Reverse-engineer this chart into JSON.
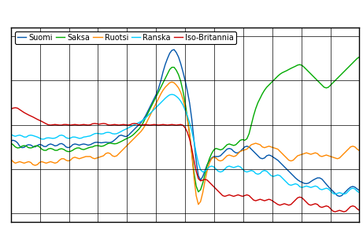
{
  "legend_labels": [
    "Suomi",
    "Saksa",
    "Ruotsi",
    "Ranska",
    "Iso-Britannia"
  ],
  "line_colors": [
    "#0055AA",
    "#00AA00",
    "#FF8800",
    "#00CCFF",
    "#CC0000"
  ],
  "background_color": "#FFFFFF",
  "grid_color": "#000000",
  "xlim": [
    0,
    156
  ],
  "ylim": [
    -22,
    22
  ],
  "x_gridlines": [
    0,
    13,
    26,
    39,
    52,
    65,
    78,
    91,
    104,
    117,
    130,
    143,
    156
  ],
  "y_gridlines": [
    -20,
    -10,
    0,
    10,
    20
  ],
  "suomi": [
    -3.5,
    -3.8,
    -3.2,
    -4.0,
    -5.0,
    -5.5,
    -5.0,
    -4.8,
    -4.2,
    -4.5,
    -5.0,
    -5.2,
    -4.8,
    -4.0,
    -4.5,
    -5.2,
    -5.0,
    -4.5,
    -4.0,
    -4.5,
    -5.0,
    -4.8,
    -4.2,
    -4.0,
    -4.5,
    -5.0,
    -5.5,
    -5.0,
    -4.5,
    -4.0,
    -4.5,
    -4.8,
    -4.5,
    -4.0,
    -4.5,
    -4.8,
    -4.5,
    -4.2,
    -4.0,
    -3.8,
    -4.0,
    -4.2,
    -4.0,
    -3.8,
    -4.0,
    -4.2,
    -3.8,
    -3.5,
    -3.0,
    -2.5,
    -2.0,
    -2.5,
    -3.0,
    -2.5,
    -2.0,
    -1.5,
    -1.0,
    -0.5,
    0.0,
    0.5,
    1.0,
    2.0,
    3.0,
    4.0,
    5.0,
    6.0,
    7.0,
    8.0,
    10.0,
    12.0,
    14.0,
    15.0,
    16.0,
    17.5,
    17.0,
    16.5,
    15.5,
    14.0,
    12.0,
    10.0,
    8.0,
    5.0,
    2.0,
    -3.0,
    -9.0,
    -12.5,
    -13.0,
    -12.0,
    -10.0,
    -9.0,
    -8.0,
    -7.5,
    -7.0,
    -7.0,
    -7.5,
    -7.0,
    -6.5,
    -6.0,
    -5.5,
    -5.0,
    -5.5,
    -6.0,
    -6.5,
    -6.5,
    -6.0,
    -5.5,
    -5.0,
    -4.5,
    -5.0,
    -5.5,
    -6.0,
    -6.5,
    -7.0,
    -7.5,
    -8.0,
    -7.5,
    -7.0,
    -6.5,
    -7.0,
    -7.5,
    -7.5,
    -8.0,
    -8.5,
    -9.0,
    -9.5,
    -10.0,
    -10.5,
    -11.0,
    -11.5,
    -12.0,
    -12.5,
    -12.8,
    -13.0,
    -13.2,
    -13.5,
    -13.2,
    -12.8,
    -12.5,
    -12.2,
    -12.0,
    -11.8,
    -12.2,
    -12.8,
    -13.5,
    -14.0,
    -14.5,
    -15.0,
    -15.5,
    -16.0,
    -16.5,
    -16.0,
    -15.5,
    -15.0,
    -14.5,
    -14.0,
    -13.8,
    -14.0,
    -14.5,
    -15.0
  ],
  "saksa": [
    -4.0,
    -4.5,
    -5.0,
    -5.5,
    -5.2,
    -4.8,
    -4.5,
    -4.8,
    -5.2,
    -5.5,
    -5.0,
    -4.8,
    -4.5,
    -5.0,
    -5.5,
    -6.0,
    -5.8,
    -5.5,
    -5.0,
    -5.5,
    -6.0,
    -5.8,
    -5.5,
    -5.2,
    -5.5,
    -6.0,
    -6.2,
    -6.0,
    -5.8,
    -5.5,
    -5.0,
    -5.2,
    -5.5,
    -5.8,
    -5.5,
    -5.0,
    -5.2,
    -5.0,
    -4.8,
    -4.5,
    -4.8,
    -5.0,
    -4.8,
    -4.5,
    -4.2,
    -4.0,
    -4.2,
    -4.5,
    -4.2,
    -4.0,
    -3.8,
    -3.5,
    -3.2,
    -3.0,
    -2.8,
    -2.5,
    -2.0,
    -1.5,
    -1.0,
    -0.5,
    0.5,
    1.5,
    2.5,
    3.5,
    4.5,
    5.5,
    6.5,
    7.5,
    8.5,
    9.5,
    10.5,
    11.5,
    12.5,
    13.5,
    13.0,
    12.5,
    11.5,
    10.0,
    8.0,
    5.0,
    2.0,
    -2.0,
    -6.0,
    -11.0,
    -15.0,
    -15.5,
    -15.0,
    -13.5,
    -11.0,
    -9.0,
    -7.5,
    -6.5,
    -5.5,
    -5.0,
    -5.5,
    -6.0,
    -5.5,
    -5.0,
    -4.5,
    -4.0,
    -4.5,
    -5.0,
    -4.5,
    -4.0,
    -3.5,
    -3.0,
    -3.5,
    -4.0,
    -2.0,
    0.0,
    2.0,
    4.0,
    5.0,
    6.0,
    7.0,
    8.0,
    8.5,
    9.0,
    9.5,
    10.0,
    10.5,
    11.0,
    11.5,
    11.8,
    12.0,
    12.2,
    12.5,
    12.8,
    13.0,
    13.2,
    13.5,
    13.8,
    13.5,
    13.0,
    12.5,
    12.0,
    11.5,
    11.0,
    10.5,
    10.0,
    9.5,
    9.0,
    8.5,
    8.0,
    8.5,
    9.0,
    9.5,
    10.0,
    10.5,
    11.0,
    11.5,
    12.0,
    12.5,
    13.0,
    13.5,
    14.0,
    14.5,
    15.0,
    15.5
  ],
  "ruotsi": [
    -7.5,
    -8.5,
    -9.0,
    -8.5,
    -8.0,
    -8.5,
    -9.0,
    -8.5,
    -8.0,
    -8.5,
    -9.0,
    -9.5,
    -9.0,
    -8.5,
    -8.0,
    -8.5,
    -9.0,
    -8.5,
    -8.0,
    -8.5,
    -9.0,
    -8.5,
    -8.0,
    -7.5,
    -7.5,
    -8.0,
    -8.5,
    -8.0,
    -7.5,
    -7.0,
    -7.5,
    -8.0,
    -7.5,
    -7.0,
    -7.5,
    -7.0,
    -7.0,
    -7.5,
    -8.0,
    -7.5,
    -7.0,
    -7.5,
    -7.0,
    -6.5,
    -6.0,
    -6.5,
    -7.0,
    -7.5,
    -7.0,
    -6.5,
    -6.0,
    -5.5,
    -5.0,
    -4.5,
    -4.0,
    -3.5,
    -3.0,
    -2.5,
    -2.0,
    -1.5,
    -1.0,
    0.0,
    1.0,
    2.0,
    3.0,
    4.0,
    5.0,
    6.0,
    7.0,
    8.0,
    8.5,
    9.0,
    9.5,
    10.0,
    9.5,
    9.0,
    8.5,
    7.5,
    6.0,
    4.0,
    1.5,
    -1.5,
    -6.0,
    -12.0,
    -17.5,
    -18.5,
    -18.0,
    -15.5,
    -12.5,
    -10.0,
    -8.5,
    -7.5,
    -7.0,
    -7.5,
    -8.0,
    -8.5,
    -8.0,
    -7.5,
    -7.0,
    -6.5,
    -7.0,
    -7.5,
    -7.0,
    -6.5,
    -6.0,
    -5.5,
    -6.0,
    -5.5,
    -5.0,
    -4.5,
    -4.0,
    -4.5,
    -4.0,
    -4.5,
    -5.0,
    -5.5,
    -5.0,
    -4.5,
    -5.0,
    -5.5,
    -5.0,
    -5.5,
    -6.0,
    -6.5,
    -7.0,
    -7.5,
    -8.0,
    -8.5,
    -8.0,
    -7.5,
    -7.0,
    -6.5,
    -7.0,
    -6.5,
    -6.0,
    -6.5,
    -7.0,
    -6.5,
    -6.0,
    -6.5,
    -7.0,
    -7.5,
    -7.0,
    -6.5,
    -7.0,
    -7.5,
    -7.0,
    -7.5,
    -8.0,
    -7.5,
    -7.0,
    -6.5,
    -6.0,
    -5.5,
    -5.0,
    -4.5,
    -5.0,
    -5.5,
    -6.0
  ],
  "ranska": [
    -2.0,
    -2.5,
    -2.8,
    -2.5,
    -2.0,
    -2.5,
    -3.0,
    -2.8,
    -2.5,
    -2.0,
    -2.5,
    -2.8,
    -2.5,
    -3.0,
    -3.5,
    -3.2,
    -3.0,
    -2.8,
    -3.0,
    -3.2,
    -3.0,
    -2.8,
    -2.5,
    -2.0,
    -2.5,
    -3.0,
    -3.2,
    -3.0,
    -2.8,
    -2.5,
    -3.0,
    -3.2,
    -3.0,
    -2.8,
    -2.5,
    -2.8,
    -2.5,
    -2.2,
    -2.0,
    -1.8,
    -2.0,
    -2.2,
    -2.0,
    -1.8,
    -1.5,
    -1.8,
    -2.0,
    -2.2,
    -2.0,
    -1.8,
    -1.5,
    -1.2,
    -1.0,
    -0.8,
    -0.5,
    -0.2,
    0.0,
    0.2,
    0.5,
    0.8,
    1.0,
    1.5,
    2.0,
    2.5,
    3.0,
    3.5,
    4.0,
    4.5,
    5.0,
    5.5,
    6.0,
    6.5,
    6.8,
    7.0,
    6.8,
    6.5,
    6.0,
    5.5,
    4.5,
    3.5,
    2.0,
    0.5,
    -1.0,
    -3.5,
    -6.5,
    -9.0,
    -10.5,
    -11.0,
    -10.5,
    -10.0,
    -9.5,
    -9.0,
    -9.5,
    -10.0,
    -10.5,
    -11.0,
    -10.5,
    -10.0,
    -9.5,
    -9.0,
    -9.5,
    -10.0,
    -9.5,
    -9.0,
    -9.5,
    -10.0,
    -10.5,
    -11.0,
    -10.5,
    -10.0,
    -10.5,
    -11.0,
    -11.5,
    -11.0,
    -10.5,
    -10.0,
    -10.5,
    -11.0,
    -11.5,
    -12.0,
    -11.5,
    -11.0,
    -11.5,
    -12.0,
    -12.5,
    -13.0,
    -13.5,
    -14.0,
    -13.5,
    -13.0,
    -13.5,
    -14.0,
    -14.5,
    -14.0,
    -13.5,
    -14.0,
    -14.5,
    -14.0,
    -13.5,
    -14.0,
    -14.5,
    -15.0,
    -14.5,
    -14.0,
    -14.5,
    -15.0,
    -15.5,
    -16.0,
    -15.5,
    -15.0,
    -15.5,
    -16.0,
    -15.5,
    -15.0,
    -14.5,
    -14.0,
    -14.5,
    -15.0,
    -15.5
  ],
  "britannia": [
    3.5,
    3.8,
    4.0,
    3.8,
    3.5,
    3.0,
    2.8,
    2.5,
    2.2,
    2.0,
    1.8,
    1.5,
    1.2,
    1.0,
    0.8,
    0.5,
    0.2,
    0.0,
    -0.2,
    0.0,
    0.2,
    0.0,
    -0.2,
    0.0,
    0.0,
    0.2,
    0.0,
    -0.2,
    0.0,
    0.2,
    0.0,
    -0.2,
    0.0,
    0.2,
    0.0,
    -0.2,
    0.0,
    0.2,
    0.5,
    0.2,
    0.0,
    0.2,
    0.5,
    0.2,
    0.0,
    -0.2,
    0.0,
    0.2,
    0.0,
    -0.2,
    0.0,
    0.2,
    0.0,
    -0.2,
    0.0,
    0.2,
    0.5,
    0.2,
    0.0,
    -0.2,
    0.0,
    0.2,
    0.0,
    -0.2,
    0.0,
    0.2,
    0.0,
    -0.2,
    0.0,
    0.2,
    0.0,
    -0.2,
    0.0,
    0.2,
    0.0,
    -0.2,
    0.0,
    0.2,
    0.0,
    -0.5,
    -1.5,
    -3.0,
    -5.0,
    -8.0,
    -11.0,
    -12.5,
    -13.0,
    -12.5,
    -12.0,
    -12.5,
    -13.0,
    -13.5,
    -14.0,
    -14.5,
    -15.0,
    -15.5,
    -16.0,
    -16.5,
    -16.0,
    -15.5,
    -16.0,
    -16.5,
    -16.0,
    -15.5,
    -16.0,
    -16.5,
    -16.0,
    -15.5,
    -16.0,
    -16.5,
    -17.0,
    -17.5,
    -17.0,
    -16.5,
    -17.0,
    -17.5,
    -17.0,
    -16.5,
    -17.0,
    -17.5,
    -17.5,
    -18.0,
    -18.5,
    -18.0,
    -17.5,
    -18.0,
    -18.5,
    -18.0,
    -17.5,
    -17.0,
    -16.5,
    -16.0,
    -16.5,
    -17.0,
    -17.5,
    -18.0,
    -18.5,
    -18.0,
    -17.5,
    -18.0,
    -18.5,
    -19.0,
    -18.5,
    -18.0,
    -18.5,
    -19.0,
    -19.5,
    -20.0,
    -19.5,
    -19.0,
    -19.5,
    -20.0,
    -19.5,
    -19.0,
    -18.5,
    -18.0,
    -18.5,
    -19.0,
    -19.5
  ]
}
